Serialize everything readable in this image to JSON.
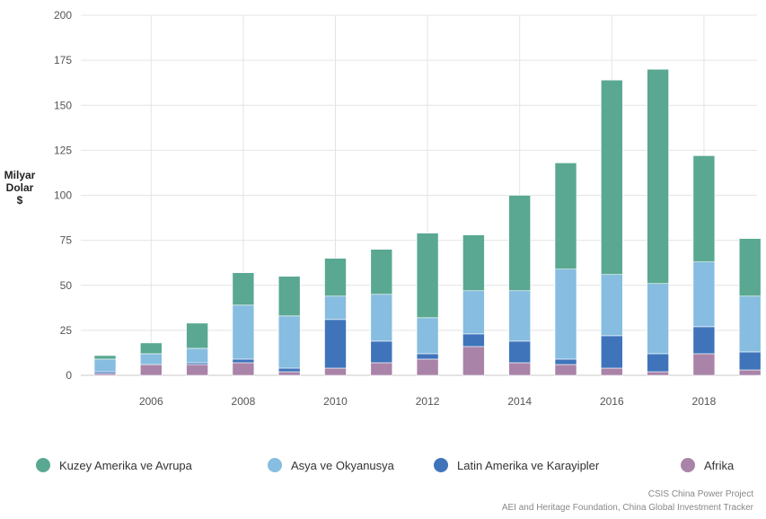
{
  "chart_data": {
    "type": "bar",
    "stacked": true,
    "ylabel": "Milyar Dolar $",
    "ylabel_lines": [
      "Milyar",
      "Dolar",
      "$"
    ],
    "ylim": [
      0,
      200
    ],
    "yticks": [
      0,
      25,
      50,
      75,
      100,
      125,
      150,
      175,
      200
    ],
    "categories": [
      "2005",
      "2006",
      "2007",
      "2008",
      "2009",
      "2010",
      "2011",
      "2012",
      "2013",
      "2014",
      "2015",
      "2016",
      "2017",
      "2018",
      "2019"
    ],
    "xtick_labels": [
      "2006",
      "2008",
      "2010",
      "2012",
      "2014",
      "2016",
      "2018"
    ],
    "grid": "vertical and horizontal",
    "legend_position": "bottom",
    "series": [
      {
        "name": "Afrika",
        "color": "#a983a8",
        "values": [
          1,
          6,
          6,
          7,
          2,
          4,
          7,
          9,
          16,
          7,
          6,
          4,
          2,
          12,
          3
        ]
      },
      {
        "name": "Latin Amerika ve Karayipler",
        "color": "#3f74bb",
        "values": [
          1,
          0,
          1,
          2,
          2,
          27,
          12,
          3,
          7,
          12,
          3,
          18,
          10,
          15,
          10
        ]
      },
      {
        "name": "Asya ve Okyanusya",
        "color": "#86bde0",
        "values": [
          7,
          6,
          8,
          30,
          29,
          13,
          26,
          20,
          24,
          28,
          50,
          34,
          39,
          36,
          31
        ]
      },
      {
        "name": "Kuzey Amerika ve Avrupa",
        "color": "#5aa892",
        "values": [
          2,
          6,
          14,
          18,
          22,
          21,
          25,
          47,
          31,
          53,
          59,
          108,
          119,
          59,
          32
        ]
      }
    ]
  },
  "legend": [
    {
      "label": "Kuzey Amerika ve Avrupa",
      "color": "#5aa892"
    },
    {
      "label": "Asya ve Okyanusya",
      "color": "#86bde0"
    },
    {
      "label": "Latin Amerika ve Karayipler",
      "color": "#3f74bb"
    },
    {
      "label": "Afrika",
      "color": "#a983a8"
    }
  ],
  "source": {
    "line1": "CSIS China Power Project",
    "line2": "AEI and Heritage Foundation, China Global Investment Tracker"
  }
}
